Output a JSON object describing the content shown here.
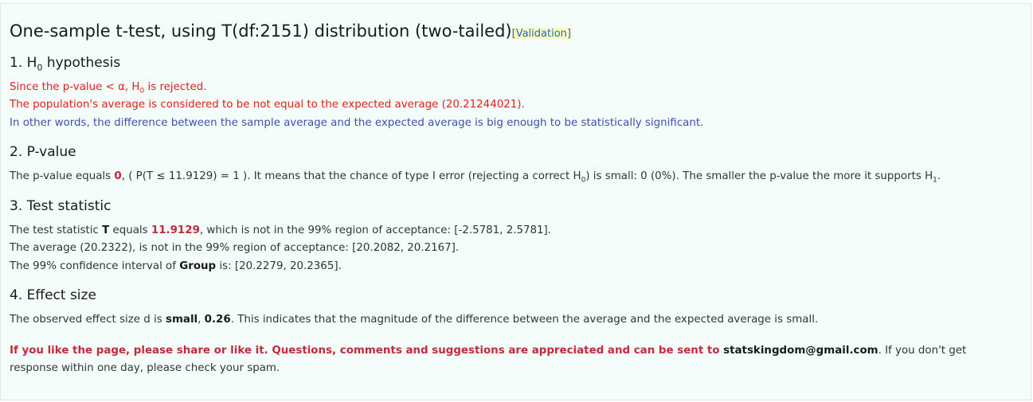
{
  "title": "One-sample t-test, using T(df:2151) distribution (two-tailed)",
  "validation_link": "[Validation]",
  "sections": {
    "h0": {
      "heading_num": "1.",
      "heading_h": "H",
      "heading_sub": "0",
      "heading_rest": " hypothesis",
      "line1_a": "Since the p-value < α, H",
      "line1_sub": "0",
      "line1_b": " is rejected.",
      "line2": "The population's average is considered to be not equal to the expected average (20.21244021).",
      "line3": "In other words, the difference between the sample average and the expected average is big enough to be statistically significant."
    },
    "pvalue": {
      "heading": "2. P-value",
      "a": "The p-value equals ",
      "value": "0",
      "b": ", ( P(T ≤ 11.9129) = 1 ). It means that the chance of type I error (rejecting a correct H",
      "sub0": "0",
      "c": ") is small: 0 (0%). The smaller the p-value the more it supports H",
      "sub1": "1",
      "d": "."
    },
    "test_statistic": {
      "heading": "3. Test statistic",
      "l1_a": "The test statistic ",
      "l1_T": "T",
      "l1_b": " equals ",
      "l1_value": "11.9129",
      "l1_c": ", which is not in the 99% region of acceptance: [-2.5781, 2.5781].",
      "l2": "The average (20.2322), is not in the 99% region of acceptance: [20.2082, 20.2167].",
      "l3_a": "The 99% confidence interval of ",
      "l3_group": "Group",
      "l3_b": " is: [20.2279, 20.2365]."
    },
    "effect_size": {
      "heading": "4. Effect size",
      "a": "The observed effect size d is ",
      "size": "small",
      "sep": ", ",
      "value": "0.26",
      "b": ". This indicates that the magnitude of the difference between the average and the expected average is small."
    }
  },
  "share": {
    "cta": "If you like the page, please share or like it. Questions, comments and suggestions are appreciated and can be sent to ",
    "email": "statskingdom@gmail.com",
    "rest": ". If you don't get response within one day, please check your spam."
  }
}
